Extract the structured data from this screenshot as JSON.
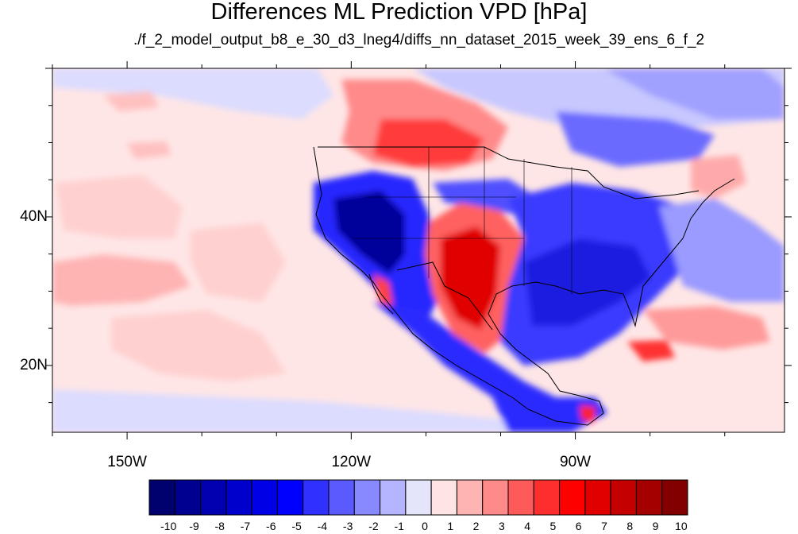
{
  "header": {
    "title": "Differences ML Prediction VPD [hPa]",
    "subtitle": "./f_2_model_output_b8_e_30_d3_lneg4/diffs_nn_dataset_2015_week_39_ens_6_f_2"
  },
  "map": {
    "lon_range": [
      -160,
      -62
    ],
    "lat_range": [
      11,
      60
    ],
    "lon_labels": [
      "150W",
      "120W",
      "90W"
    ],
    "lat_labels": [
      "40N",
      "20N"
    ]
  },
  "colorbar": {
    "labels": [
      "-10",
      "-9",
      "-8",
      "-7",
      "-6",
      "-5",
      "-4",
      "-3",
      "-2",
      "-1",
      "0",
      "1",
      "2",
      "3",
      "4",
      "5",
      "6",
      "7",
      "8",
      "9",
      "10"
    ],
    "colors": [
      "#00006e",
      "#000090",
      "#0000b0",
      "#0000cc",
      "#0000e6",
      "#0000ff",
      "#3030ff",
      "#5a5aff",
      "#8888ff",
      "#b4b4ff",
      "#e4e4fa",
      "#ffe4e4",
      "#ffb4b4",
      "#ff8a8a",
      "#ff5a5a",
      "#ff2e2e",
      "#ff0000",
      "#e00000",
      "#c40000",
      "#a40000",
      "#820000"
    ]
  }
}
